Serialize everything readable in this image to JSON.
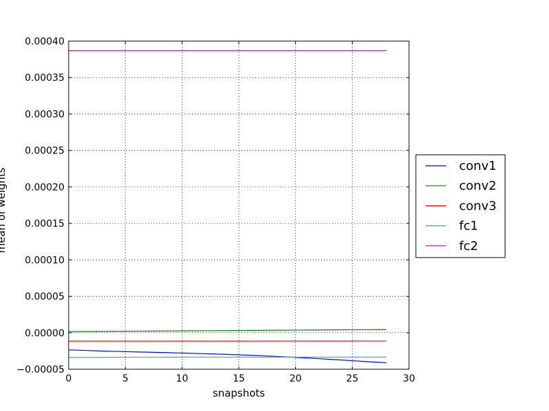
{
  "chart_data": {
    "type": "line",
    "title": "",
    "xlabel": "snapshots",
    "ylabel": "mean of weights",
    "xlim": [
      0,
      30
    ],
    "ylim": [
      -5e-05,
      0.0004
    ],
    "xticks": [
      0,
      5,
      10,
      15,
      20,
      25,
      30
    ],
    "xtick_labels": [
      "0",
      "5",
      "10",
      "15",
      "20",
      "25",
      "30"
    ],
    "yticks": [
      -5e-05,
      0,
      5e-05,
      0.0001,
      0.00015,
      0.0002,
      0.00025,
      0.0003,
      0.00035,
      0.0004
    ],
    "ytick_labels": [
      "−0.00005",
      "0.00000",
      "0.00005",
      "0.00010",
      "0.00015",
      "0.00020",
      "0.00025",
      "0.00030",
      "0.00035",
      "0.00040"
    ],
    "grid": true,
    "legend_position": "right-outside",
    "x": [
      0,
      2,
      4,
      6,
      8,
      10,
      12,
      14,
      16,
      18,
      20,
      22,
      24,
      26,
      28
    ],
    "series": [
      {
        "name": "conv1",
        "color": "#0000ff",
        "values": [
          -2.35e-05,
          -2.45e-05,
          -2.55e-05,
          -2.63e-05,
          -2.7e-05,
          -2.78e-05,
          -2.87e-05,
          -2.97e-05,
          -3.08e-05,
          -3.22e-05,
          -3.38e-05,
          -3.55e-05,
          -3.73e-05,
          -3.93e-05,
          -4.12e-05
        ]
      },
      {
        "name": "conv2",
        "color": "#008000",
        "values": [
          1.6e-06,
          1.8e-06,
          2e-06,
          2.2e-06,
          2.4e-06,
          2.6e-06,
          2.8e-06,
          3e-06,
          3.2e-06,
          3.4e-06,
          3.6e-06,
          3.8e-06,
          4e-06,
          4.2e-06,
          4.4e-06
        ]
      },
      {
        "name": "conv3",
        "color": "#ff0000",
        "values": [
          -1.15e-05,
          -1.15e-05,
          -1.15e-05,
          -1.15e-05,
          -1.15e-05,
          -1.15e-05,
          -1.15e-05,
          -1.15e-05,
          -1.15e-05,
          -1.14e-05,
          -1.14e-05,
          -1.14e-05,
          -1.14e-05,
          -1.13e-05,
          -1.13e-05
        ]
      },
      {
        "name": "fc1",
        "color": "#00bfbf",
        "values": [
          -3.38e-05,
          -3.37e-05,
          -3.36e-05,
          -3.35e-05,
          -3.35e-05,
          -3.34e-05,
          -3.34e-05,
          -3.34e-05,
          -3.34e-05,
          -3.34e-05,
          -3.34e-05,
          -3.34e-05,
          -3.34e-05,
          -3.34e-05,
          -3.34e-05
        ]
      },
      {
        "name": "fc2",
        "color": "#bf00bf",
        "values": [
          0.000387,
          0.000387,
          0.000387,
          0.000387,
          0.000387,
          0.000387,
          0.000387,
          0.000387,
          0.000387,
          0.000387,
          0.000387,
          0.000387,
          0.000387,
          0.000387,
          0.000387
        ]
      }
    ]
  }
}
